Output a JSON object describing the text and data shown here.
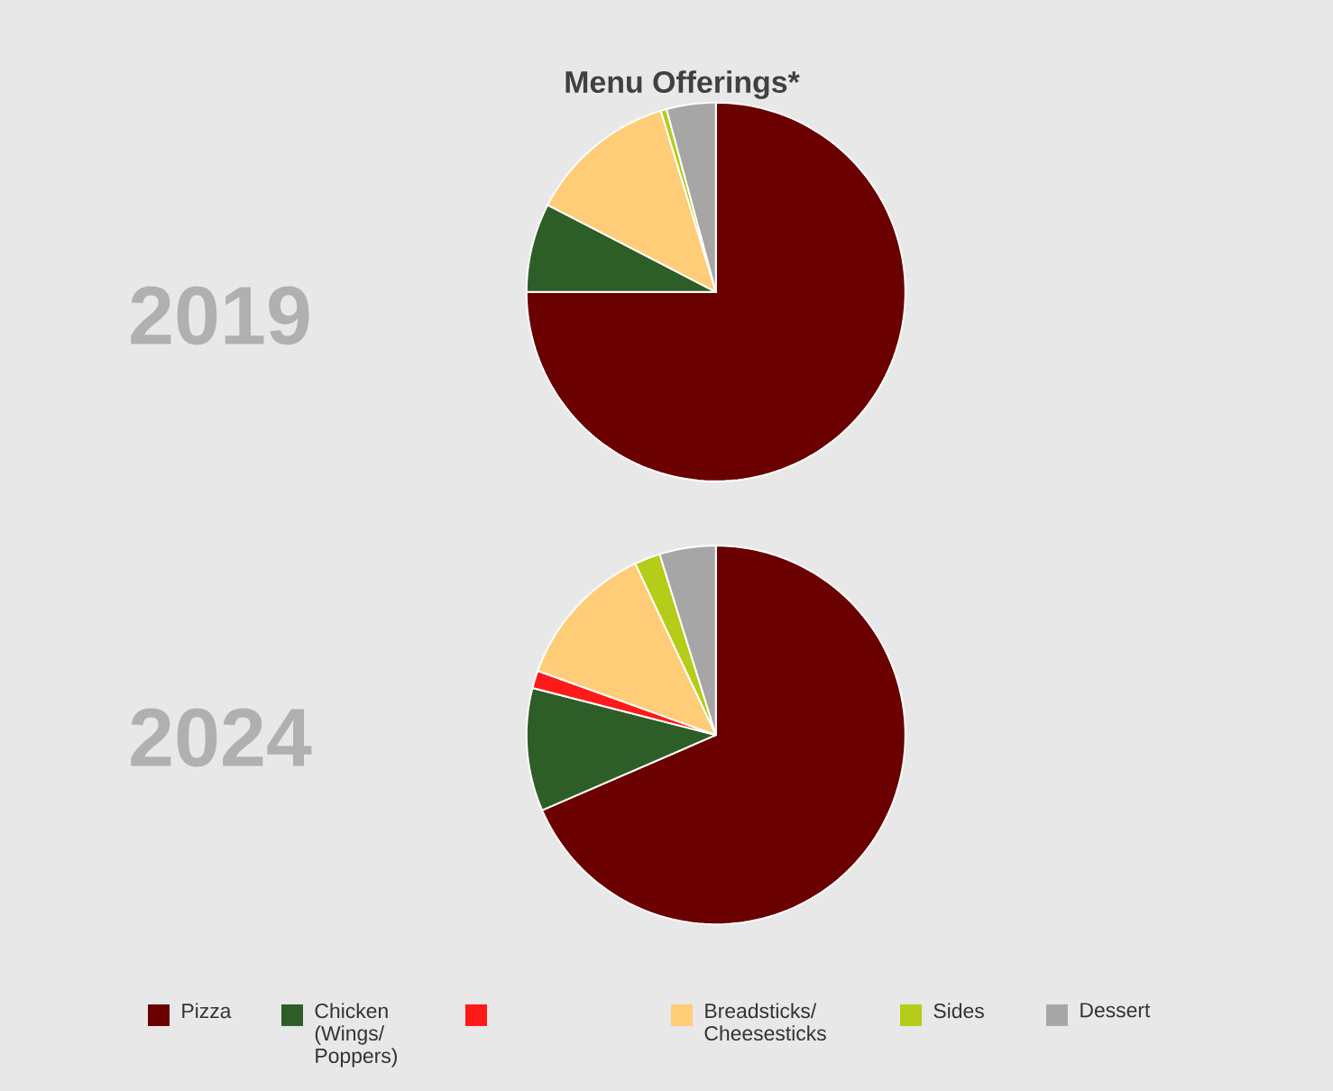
{
  "chart_data": {
    "type": "pie",
    "title": "Menu Offerings*",
    "categories": [
      "Pizza",
      "Chicken (Wings/ Poppers)",
      null,
      "Breadsticks/ Cheesesticks",
      "Sides",
      "Dessert"
    ],
    "colors": [
      "#6b0000",
      "#2e5e27",
      "#ff1a1a",
      "#ffcc77",
      "#b5cc18",
      "#a6a6a6"
    ],
    "legend": "bottom",
    "series": [
      {
        "name": "2019",
        "values": [
          75,
          7.6,
          0,
          12.7,
          0.5,
          4.2
        ]
      },
      {
        "name": "2024",
        "values": [
          68.5,
          10.5,
          1.5,
          12.5,
          2.2,
          4.8
        ]
      }
    ]
  }
}
